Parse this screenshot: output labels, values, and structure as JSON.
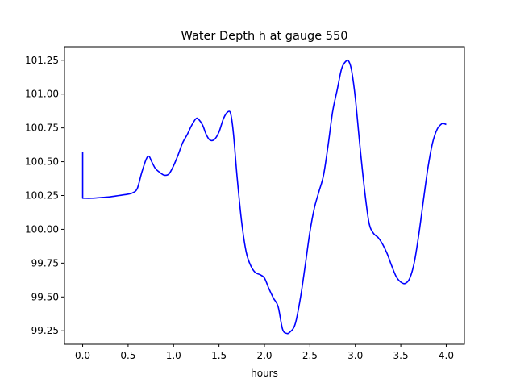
{
  "chart_data": {
    "type": "line",
    "title": "Water Depth h at gauge 550",
    "xlabel": "hours",
    "ylabel": "",
    "xlim": [
      -0.2,
      4.2
    ],
    "ylim": [
      99.15,
      101.35
    ],
    "xticks": [
      0.0,
      0.5,
      1.0,
      1.5,
      2.0,
      2.5,
      3.0,
      3.5,
      4.0
    ],
    "xtick_labels": [
      "0.0",
      "0.5",
      "1.0",
      "1.5",
      "2.0",
      "2.5",
      "3.0",
      "3.5",
      "4.0"
    ],
    "yticks": [
      99.25,
      99.5,
      99.75,
      100.0,
      100.25,
      100.5,
      100.75,
      101.0,
      101.25
    ],
    "ytick_labels": [
      "99.25",
      "99.50",
      "99.75",
      "100.00",
      "100.25",
      "100.50",
      "100.75",
      "101.00",
      "101.25"
    ],
    "grid": false,
    "legend": null,
    "series": [
      {
        "color": "#0000ff",
        "x": [
          0.0,
          0.0,
          0.1,
          0.2,
          0.3,
          0.4,
          0.5,
          0.55,
          0.6,
          0.65,
          0.7,
          0.73,
          0.76,
          0.8,
          0.85,
          0.9,
          0.95,
          1.0,
          1.05,
          1.1,
          1.15,
          1.2,
          1.25,
          1.28,
          1.32,
          1.36,
          1.4,
          1.45,
          1.5,
          1.55,
          1.6,
          1.63,
          1.66,
          1.7,
          1.75,
          1.8,
          1.85,
          1.9,
          1.95,
          2.0,
          2.05,
          2.1,
          2.15,
          2.2,
          2.25,
          2.28,
          2.32,
          2.35,
          2.4,
          2.45,
          2.5,
          2.55,
          2.6,
          2.65,
          2.7,
          2.75,
          2.8,
          2.85,
          2.9,
          2.93,
          2.96,
          3.0,
          3.05,
          3.1,
          3.15,
          3.2,
          3.25,
          3.3,
          3.35,
          3.4,
          3.45,
          3.5,
          3.55,
          3.6,
          3.65,
          3.7,
          3.75,
          3.8,
          3.85,
          3.9,
          3.95,
          3.98,
          4.0
        ],
        "y": [
          100.57,
          100.23,
          100.23,
          100.235,
          100.24,
          100.25,
          100.26,
          100.27,
          100.3,
          100.42,
          100.52,
          100.54,
          100.5,
          100.45,
          100.42,
          100.4,
          100.41,
          100.47,
          100.55,
          100.64,
          100.7,
          100.77,
          100.82,
          100.81,
          100.77,
          100.7,
          100.66,
          100.665,
          100.72,
          100.82,
          100.87,
          100.85,
          100.7,
          100.38,
          100.05,
          99.83,
          99.73,
          99.68,
          99.665,
          99.64,
          99.56,
          99.49,
          99.43,
          99.26,
          99.23,
          99.24,
          99.27,
          99.33,
          99.51,
          99.74,
          99.98,
          100.16,
          100.28,
          100.4,
          100.62,
          100.87,
          101.03,
          101.19,
          101.245,
          101.24,
          101.17,
          100.97,
          100.62,
          100.3,
          100.05,
          99.97,
          99.94,
          99.89,
          99.82,
          99.73,
          99.65,
          99.61,
          99.6,
          99.64,
          99.76,
          99.97,
          100.22,
          100.46,
          100.64,
          100.74,
          100.78,
          100.78,
          100.775
        ]
      }
    ]
  }
}
